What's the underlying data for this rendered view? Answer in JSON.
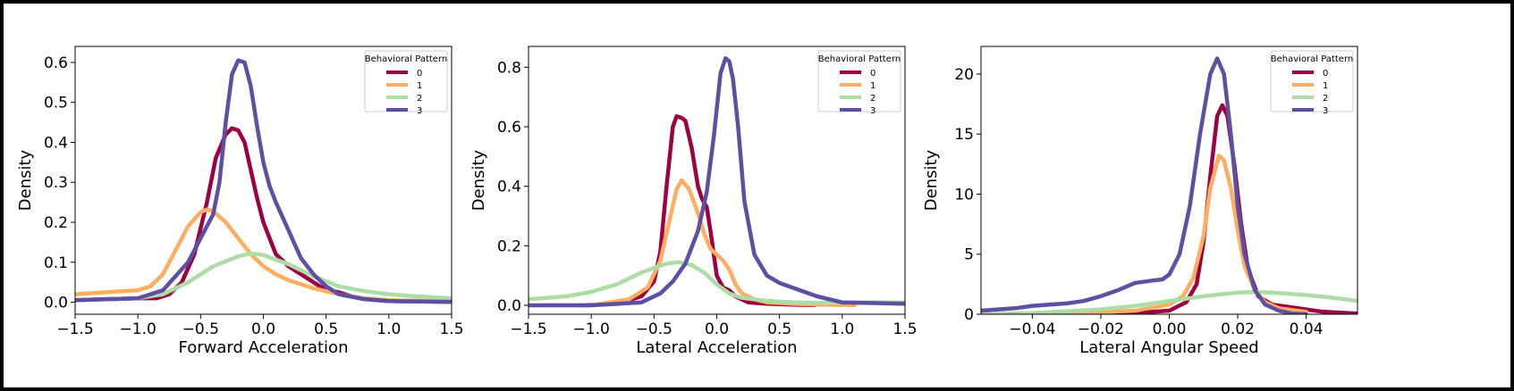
{
  "chart_data": [
    {
      "type": "line",
      "xlabel": "Forward Acceleration",
      "ylabel": "Density",
      "xlim": [
        -1.5,
        1.5
      ],
      "ylim": [
        -0.03,
        0.64
      ],
      "xticks": [
        -1.5,
        -1.0,
        -0.5,
        0.0,
        0.5,
        1.0,
        1.5
      ],
      "xtick_labels": [
        "−1.5",
        "−1.0",
        "−0.5",
        "0.0",
        "0.5",
        "1.0",
        "1.5"
      ],
      "yticks": [
        0.0,
        0.1,
        0.2,
        0.3,
        0.4,
        0.5,
        0.6
      ],
      "ytick_labels": [
        "0.0",
        "0.1",
        "0.2",
        "0.3",
        "0.4",
        "0.5",
        "0.6"
      ],
      "legend": {
        "title": "Behavioral Pattern",
        "placement": "top-right"
      },
      "series": [
        {
          "name": "0",
          "color": "#9e0142",
          "x": [
            -1.5,
            -1.0,
            -0.85,
            -0.75,
            -0.65,
            -0.55,
            -0.45,
            -0.38,
            -0.3,
            -0.25,
            -0.2,
            -0.15,
            -0.1,
            -0.05,
            0.0,
            0.1,
            0.2,
            0.3,
            0.4,
            0.5,
            0.6,
            0.7,
            0.8,
            1.0,
            1.5
          ],
          "y": [
            0.005,
            0.01,
            0.01,
            0.02,
            0.05,
            0.12,
            0.25,
            0.36,
            0.42,
            0.435,
            0.43,
            0.4,
            0.33,
            0.26,
            0.2,
            0.12,
            0.09,
            0.07,
            0.05,
            0.03,
            0.025,
            0.015,
            0.008,
            0.003,
            0.001
          ]
        },
        {
          "name": "1",
          "color": "#fdae61",
          "x": [
            -1.5,
            -1.0,
            -0.9,
            -0.8,
            -0.7,
            -0.6,
            -0.5,
            -0.45,
            -0.4,
            -0.3,
            -0.2,
            -0.1,
            0.0,
            0.1,
            0.2,
            0.3,
            0.4,
            0.6,
            0.8,
            1.0,
            1.5
          ],
          "y": [
            0.02,
            0.03,
            0.04,
            0.07,
            0.13,
            0.19,
            0.225,
            0.232,
            0.228,
            0.2,
            0.16,
            0.12,
            0.09,
            0.07,
            0.055,
            0.045,
            0.035,
            0.02,
            0.01,
            0.005,
            0.002
          ]
        },
        {
          "name": "2",
          "color": "#abdda4",
          "x": [
            -1.5,
            -1.0,
            -0.8,
            -0.6,
            -0.4,
            -0.2,
            -0.1,
            0.0,
            0.2,
            0.4,
            0.6,
            0.8,
            1.0,
            1.2,
            1.5
          ],
          "y": [
            0.005,
            0.01,
            0.02,
            0.05,
            0.09,
            0.115,
            0.122,
            0.118,
            0.095,
            0.065,
            0.04,
            0.028,
            0.02,
            0.015,
            0.01
          ]
        },
        {
          "name": "3",
          "color": "#5e4fa2",
          "x": [
            -1.5,
            -1.0,
            -0.8,
            -0.6,
            -0.5,
            -0.4,
            -0.35,
            -0.3,
            -0.25,
            -0.2,
            -0.15,
            -0.1,
            -0.05,
            0.0,
            0.05,
            0.1,
            0.2,
            0.3,
            0.4,
            0.5,
            0.6,
            0.8,
            1.0,
            1.5
          ],
          "y": [
            0.005,
            0.01,
            0.03,
            0.1,
            0.16,
            0.22,
            0.3,
            0.45,
            0.57,
            0.605,
            0.6,
            0.54,
            0.44,
            0.35,
            0.29,
            0.25,
            0.18,
            0.11,
            0.07,
            0.04,
            0.02,
            0.008,
            0.003,
            0.001
          ]
        }
      ]
    },
    {
      "type": "line",
      "xlabel": "Lateral Acceleration",
      "ylabel": "Density",
      "xlim": [
        -1.5,
        1.5
      ],
      "ylim": [
        -0.03,
        0.87
      ],
      "xticks": [
        -1.5,
        -1.0,
        -0.5,
        0.0,
        0.5,
        1.0,
        1.5
      ],
      "xtick_labels": [
        "−1.5",
        "−1.0",
        "−0.5",
        "0.0",
        "0.5",
        "1.0",
        "1.5"
      ],
      "yticks": [
        0.0,
        0.2,
        0.4,
        0.6,
        0.8
      ],
      "ytick_labels": [
        "0.0",
        "0.2",
        "0.4",
        "0.6",
        "0.8"
      ],
      "legend": {
        "title": "Behavioral Pattern",
        "placement": "top-right"
      },
      "series": [
        {
          "name": "0",
          "color": "#9e0142",
          "x": [
            -1.05,
            -0.8,
            -0.6,
            -0.5,
            -0.45,
            -0.4,
            -0.35,
            -0.32,
            -0.28,
            -0.25,
            -0.2,
            -0.15,
            -0.12,
            -0.08,
            -0.05,
            0.0,
            0.05,
            0.1,
            0.15,
            0.25,
            0.4,
            0.6,
            0.78
          ],
          "y": [
            0.0,
            0.005,
            0.03,
            0.08,
            0.18,
            0.4,
            0.6,
            0.635,
            0.63,
            0.62,
            0.53,
            0.4,
            0.36,
            0.33,
            0.25,
            0.1,
            0.06,
            0.05,
            0.03,
            0.01,
            0.005,
            0.002,
            0.001
          ]
        },
        {
          "name": "1",
          "color": "#fdae61",
          "x": [
            -1.5,
            -1.0,
            -0.7,
            -0.55,
            -0.45,
            -0.38,
            -0.32,
            -0.28,
            -0.22,
            -0.15,
            -0.1,
            -0.05,
            0.0,
            0.05,
            0.1,
            0.15,
            0.2,
            0.3,
            0.4,
            0.6,
            0.8,
            1.1
          ],
          "y": [
            0.0,
            0.0,
            0.02,
            0.06,
            0.15,
            0.28,
            0.39,
            0.42,
            0.39,
            0.31,
            0.24,
            0.19,
            0.17,
            0.15,
            0.12,
            0.07,
            0.04,
            0.02,
            0.01,
            0.005,
            0.002,
            0.001
          ]
        },
        {
          "name": "2",
          "color": "#abdda4",
          "x": [
            -1.5,
            -1.2,
            -1.0,
            -0.8,
            -0.6,
            -0.4,
            -0.3,
            -0.2,
            -0.1,
            0.0,
            0.1,
            0.2,
            0.4,
            0.6,
            0.8,
            1.0,
            1.5
          ],
          "y": [
            0.02,
            0.03,
            0.045,
            0.07,
            0.11,
            0.14,
            0.145,
            0.135,
            0.11,
            0.07,
            0.04,
            0.025,
            0.015,
            0.01,
            0.008,
            0.01,
            0.01
          ]
        },
        {
          "name": "3",
          "color": "#5e4fa2",
          "x": [
            -1.5,
            -1.0,
            -0.6,
            -0.45,
            -0.35,
            -0.25,
            -0.15,
            -0.08,
            -0.02,
            0.03,
            0.07,
            0.1,
            0.13,
            0.17,
            0.22,
            0.3,
            0.4,
            0.5,
            0.6,
            0.7,
            0.8,
            1.0,
            1.5
          ],
          "y": [
            0.0,
            0.0,
            0.01,
            0.04,
            0.08,
            0.14,
            0.25,
            0.38,
            0.58,
            0.78,
            0.83,
            0.82,
            0.76,
            0.6,
            0.35,
            0.17,
            0.1,
            0.075,
            0.06,
            0.045,
            0.03,
            0.01,
            0.005
          ]
        }
      ]
    },
    {
      "type": "line",
      "xlabel": "Lateral Angular Speed",
      "ylabel": "Density",
      "xlim": [
        -0.055,
        0.055
      ],
      "ylim": [
        0,
        22.3
      ],
      "xticks": [
        -0.04,
        -0.02,
        0.0,
        0.02,
        0.04
      ],
      "xtick_labels": [
        "−0.04",
        "−0.02",
        "0.00",
        "0.02",
        "0.04"
      ],
      "yticks": [
        0,
        5,
        10,
        15,
        20
      ],
      "ytick_labels": [
        "0",
        "5",
        "10",
        "15",
        "20"
      ],
      "legend": {
        "title": "Behavioral Pattern",
        "placement": "top-right"
      },
      "series": [
        {
          "name": "0",
          "color": "#9e0142",
          "x": [
            -0.055,
            -0.03,
            -0.01,
            0.0,
            0.005,
            0.008,
            0.01,
            0.012,
            0.014,
            0.0155,
            0.017,
            0.019,
            0.021,
            0.023,
            0.026,
            0.03,
            0.035,
            0.04,
            0.045,
            0.055
          ],
          "y": [
            0.0,
            0.05,
            0.1,
            0.3,
            1.0,
            2.5,
            6.0,
            11.5,
            16.5,
            17.4,
            16.5,
            12.5,
            7.5,
            3.8,
            1.5,
            0.8,
            0.6,
            0.4,
            0.2,
            0.05
          ]
        },
        {
          "name": "1",
          "color": "#fdae61",
          "x": [
            -0.055,
            -0.03,
            -0.01,
            0.0,
            0.004,
            0.007,
            0.01,
            0.012,
            0.0145,
            0.016,
            0.018,
            0.02,
            0.022,
            0.025,
            0.028,
            0.032,
            0.04
          ],
          "y": [
            0.0,
            0.05,
            0.3,
            0.8,
            1.5,
            3.0,
            6.5,
            10.5,
            13.2,
            12.8,
            10.5,
            7.0,
            4.0,
            2.0,
            1.0,
            0.5,
            0.2
          ]
        },
        {
          "name": "2",
          "color": "#abdda4",
          "x": [
            -0.055,
            -0.04,
            -0.02,
            -0.01,
            0.0,
            0.01,
            0.02,
            0.025,
            0.03,
            0.04,
            0.05,
            0.055
          ],
          "y": [
            0.0,
            0.1,
            0.4,
            0.7,
            1.1,
            1.5,
            1.8,
            1.85,
            1.8,
            1.6,
            1.3,
            1.1
          ]
        },
        {
          "name": "3",
          "color": "#5e4fa2",
          "x": [
            -0.055,
            -0.045,
            -0.04,
            -0.035,
            -0.03,
            -0.025,
            -0.02,
            -0.015,
            -0.01,
            -0.005,
            -0.002,
            0.0,
            0.003,
            0.006,
            0.009,
            0.012,
            0.014,
            0.016,
            0.018,
            0.02,
            0.022,
            0.025,
            0.028,
            0.032,
            0.036,
            0.04
          ],
          "y": [
            0.3,
            0.5,
            0.7,
            0.8,
            0.9,
            1.1,
            1.5,
            2.0,
            2.6,
            2.8,
            2.9,
            3.3,
            5.0,
            9.0,
            15.0,
            20.0,
            21.3,
            20.0,
            15.0,
            9.0,
            5.0,
            2.0,
            0.8,
            0.3,
            0.05,
            0.0
          ]
        }
      ]
    }
  ]
}
